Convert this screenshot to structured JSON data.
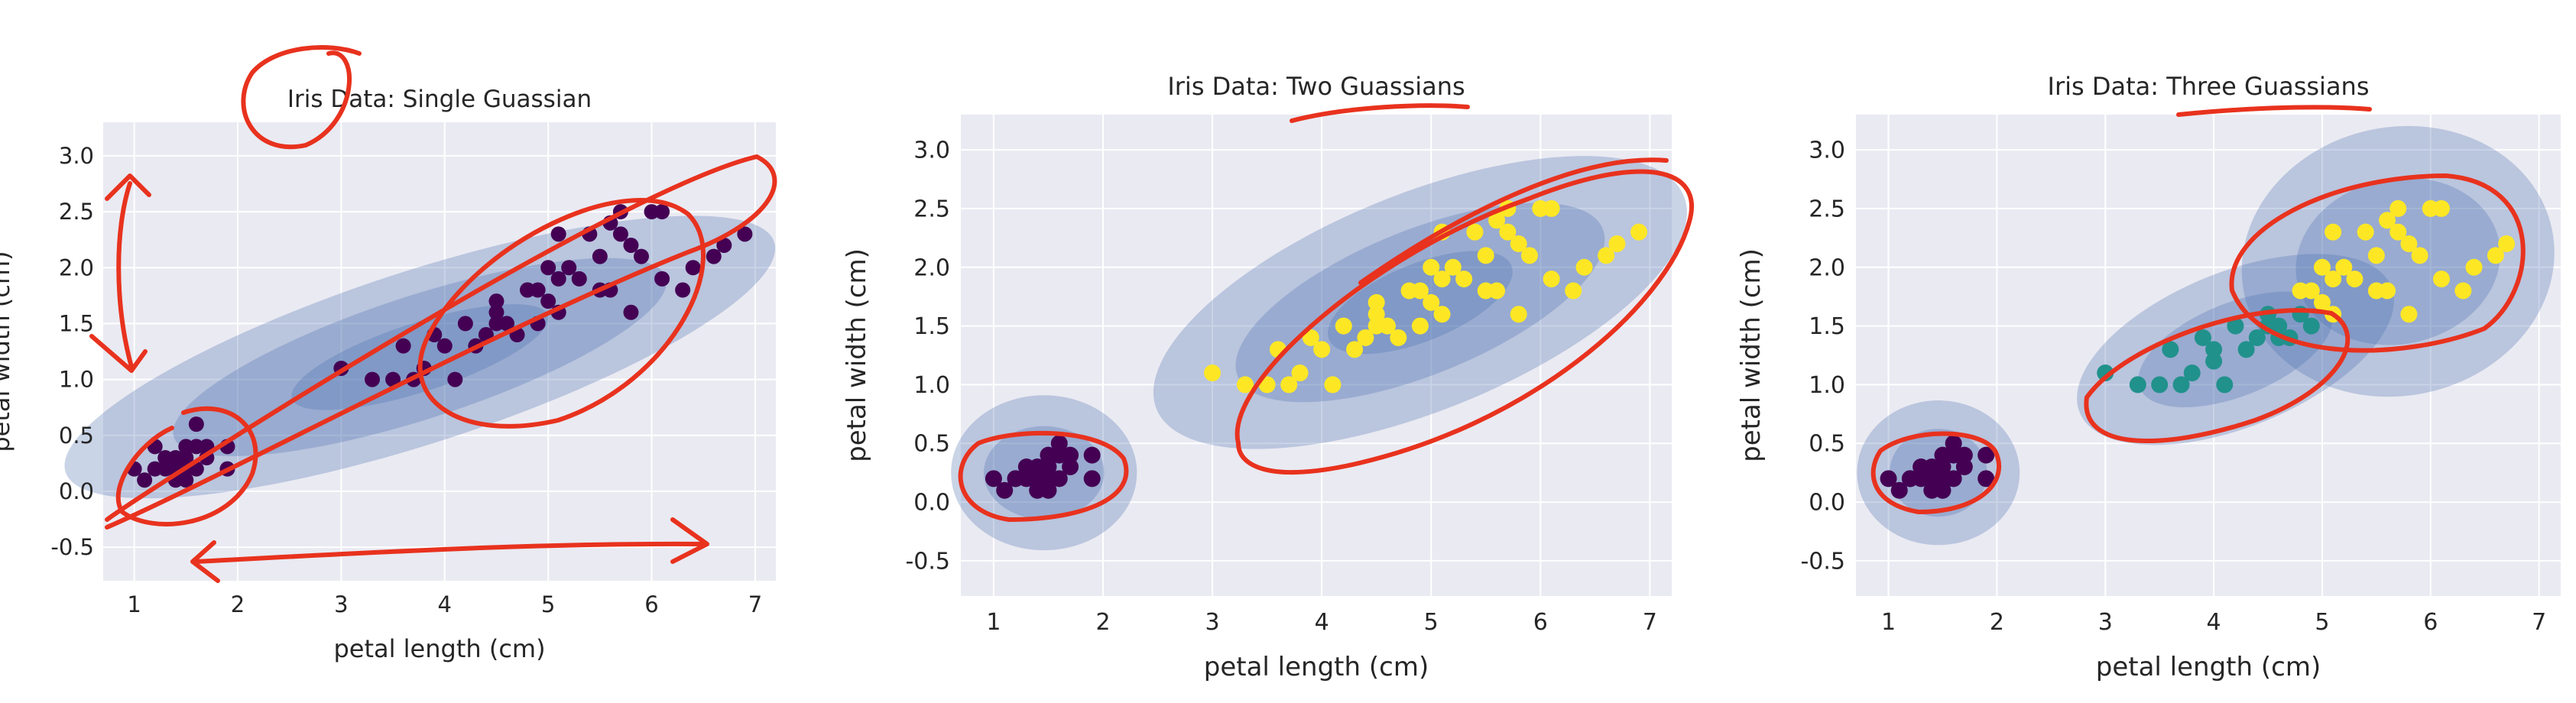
{
  "chart_data": [
    {
      "type": "scatter",
      "title": "Iris Data: Single Guassian",
      "xlabel": "petal length (cm)",
      "ylabel": "petal width (cm)",
      "xlim": [
        0.7,
        7.2
      ],
      "ylim": [
        -0.8,
        3.3
      ],
      "xticks": [
        1,
        2,
        3,
        4,
        5,
        6,
        7
      ],
      "yticks": [
        -0.5,
        0.0,
        0.5,
        1.0,
        1.5,
        2.0,
        2.5,
        3.0
      ],
      "grid": true,
      "series": [
        {
          "color": "#440154",
          "points": [
            [
              1.4,
              0.2
            ],
            [
              1.3,
              0.2
            ],
            [
              1.5,
              0.2
            ],
            [
              1.4,
              0.3
            ],
            [
              1.7,
              0.4
            ],
            [
              1.5,
              0.1
            ],
            [
              1.6,
              0.2
            ],
            [
              1.1,
              0.1
            ],
            [
              1.2,
              0.2
            ],
            [
              1.0,
              0.2
            ],
            [
              1.9,
              0.4
            ],
            [
              1.6,
              0.6
            ],
            [
              1.5,
              0.4
            ],
            [
              1.3,
              0.3
            ],
            [
              1.7,
              0.3
            ],
            [
              1.4,
              0.1
            ],
            [
              1.6,
              0.4
            ],
            [
              1.5,
              0.3
            ],
            [
              1.2,
              0.4
            ],
            [
              1.9,
              0.2
            ],
            [
              4.7,
              1.4
            ],
            [
              4.5,
              1.5
            ],
            [
              4.9,
              1.5
            ],
            [
              4.0,
              1.3
            ],
            [
              4.6,
              1.5
            ],
            [
              3.3,
              1.0
            ],
            [
              3.9,
              1.4
            ],
            [
              3.5,
              1.0
            ],
            [
              4.2,
              1.5
            ],
            [
              3.6,
              1.3
            ],
            [
              4.4,
              1.4
            ],
            [
              4.1,
              1.0
            ],
            [
              4.8,
              1.8
            ],
            [
              4.3,
              1.3
            ],
            [
              5.0,
              1.7
            ],
            [
              3.8,
              1.1
            ],
            [
              3.7,
              1.0
            ],
            [
              5.1,
              1.6
            ],
            [
              4.5,
              1.6
            ],
            [
              3.0,
              1.1
            ],
            [
              6.0,
              2.5
            ],
            [
              5.1,
              1.9
            ],
            [
              5.9,
              2.1
            ],
            [
              5.6,
              1.8
            ],
            [
              5.8,
              2.2
            ],
            [
              6.6,
              2.1
            ],
            [
              4.5,
              1.7
            ],
            [
              6.3,
              1.8
            ],
            [
              6.1,
              2.5
            ],
            [
              5.3,
              1.9
            ],
            [
              5.5,
              2.1
            ],
            [
              5.0,
              2.0
            ],
            [
              6.7,
              2.2
            ],
            [
              6.9,
              2.3
            ],
            [
              5.7,
              2.3
            ],
            [
              4.9,
              1.8
            ],
            [
              6.4,
              2.0
            ],
            [
              5.4,
              2.3
            ],
            [
              5.6,
              2.4
            ],
            [
              5.1,
              2.3
            ],
            [
              5.2,
              2.0
            ],
            [
              5.7,
              2.5
            ],
            [
              4.8,
              1.8
            ],
            [
              5.8,
              1.6
            ],
            [
              6.1,
              1.9
            ],
            [
              5.5,
              1.8
            ]
          ]
        }
      ],
      "ellipses": [
        {
          "cx": 3.76,
          "cy": 1.2,
          "rx": 3.6,
          "ry": 0.35,
          "angle": 18,
          "opacity": 0.3
        },
        {
          "cx": 3.76,
          "cy": 1.2,
          "rx": 2.5,
          "ry": 0.25,
          "angle": 18,
          "opacity": 0.3
        },
        {
          "cx": 3.76,
          "cy": 1.2,
          "rx": 1.3,
          "ry": 0.14,
          "angle": 18,
          "opacity": 0.3
        }
      ]
    },
    {
      "type": "scatter",
      "title": "Iris Data: Two Guassians",
      "xlabel": "petal length (cm)",
      "ylabel": "petal width (cm)",
      "xlim": [
        0.7,
        7.2
      ],
      "ylim": [
        -0.8,
        3.3
      ],
      "xticks": [
        1,
        2,
        3,
        4,
        5,
        6,
        7
      ],
      "yticks": [
        -0.5,
        0.0,
        0.5,
        1.0,
        1.5,
        2.0,
        2.5,
        3.0
      ],
      "grid": true,
      "series": [
        {
          "color": "#440154",
          "points": [
            [
              1.4,
              0.2
            ],
            [
              1.3,
              0.2
            ],
            [
              1.5,
              0.2
            ],
            [
              1.4,
              0.3
            ],
            [
              1.7,
              0.4
            ],
            [
              1.5,
              0.1
            ],
            [
              1.6,
              0.2
            ],
            [
              1.1,
              0.1
            ],
            [
              1.2,
              0.2
            ],
            [
              1.0,
              0.2
            ],
            [
              1.9,
              0.4
            ],
            [
              1.6,
              0.5
            ],
            [
              1.5,
              0.4
            ],
            [
              1.3,
              0.3
            ],
            [
              1.7,
              0.3
            ],
            [
              1.4,
              0.1
            ],
            [
              1.6,
              0.4
            ],
            [
              1.5,
              0.3
            ],
            [
              1.2,
              0.2
            ],
            [
              1.9,
              0.2
            ]
          ]
        },
        {
          "color": "#fde725",
          "points": [
            [
              4.7,
              1.4
            ],
            [
              4.5,
              1.5
            ],
            [
              4.9,
              1.5
            ],
            [
              4.0,
              1.3
            ],
            [
              4.6,
              1.5
            ],
            [
              3.3,
              1.0
            ],
            [
              3.9,
              1.4
            ],
            [
              3.5,
              1.0
            ],
            [
              4.2,
              1.5
            ],
            [
              3.6,
              1.3
            ],
            [
              4.4,
              1.4
            ],
            [
              4.1,
              1.0
            ],
            [
              4.8,
              1.8
            ],
            [
              4.3,
              1.3
            ],
            [
              5.0,
              1.7
            ],
            [
              3.8,
              1.1
            ],
            [
              3.7,
              1.0
            ],
            [
              5.1,
              1.6
            ],
            [
              4.5,
              1.6
            ],
            [
              3.0,
              1.1
            ],
            [
              6.0,
              2.5
            ],
            [
              5.1,
              1.9
            ],
            [
              5.9,
              2.1
            ],
            [
              5.6,
              1.8
            ],
            [
              5.8,
              2.2
            ],
            [
              6.6,
              2.1
            ],
            [
              4.5,
              1.7
            ],
            [
              6.3,
              1.8
            ],
            [
              6.1,
              2.5
            ],
            [
              5.3,
              1.9
            ],
            [
              5.5,
              2.1
            ],
            [
              5.0,
              2.0
            ],
            [
              6.7,
              2.2
            ],
            [
              6.9,
              2.3
            ],
            [
              5.7,
              2.3
            ],
            [
              4.9,
              1.8
            ],
            [
              6.4,
              2.0
            ],
            [
              5.4,
              2.3
            ],
            [
              5.6,
              2.4
            ],
            [
              5.1,
              2.3
            ],
            [
              5.2,
              2.0
            ],
            [
              5.7,
              2.5
            ],
            [
              5.8,
              1.6
            ],
            [
              6.1,
              1.9
            ],
            [
              5.5,
              1.8
            ]
          ]
        }
      ],
      "ellipses": [
        {
          "cx": 1.46,
          "cy": 0.25,
          "rx": 0.85,
          "ry": 0.3,
          "angle": 0,
          "opacity": 0.3
        },
        {
          "cx": 1.46,
          "cy": 0.25,
          "rx": 0.55,
          "ry": 0.18,
          "angle": 0,
          "opacity": 0.3
        },
        {
          "cx": 4.9,
          "cy": 1.7,
          "rx": 2.6,
          "ry": 0.42,
          "angle": 22,
          "opacity": 0.3
        },
        {
          "cx": 4.9,
          "cy": 1.7,
          "rx": 1.8,
          "ry": 0.28,
          "angle": 22,
          "opacity": 0.3
        },
        {
          "cx": 4.9,
          "cy": 1.7,
          "rx": 0.9,
          "ry": 0.15,
          "angle": 22,
          "opacity": 0.3
        }
      ]
    },
    {
      "type": "scatter",
      "title": "Iris Data: Three Guassians",
      "xlabel": "petal length (cm)",
      "ylabel": "petal width (cm)",
      "xlim": [
        0.7,
        7.2
      ],
      "ylim": [
        -0.8,
        3.3
      ],
      "xticks": [
        1,
        2,
        3,
        4,
        5,
        6,
        7
      ],
      "yticks": [
        -0.5,
        0.0,
        0.5,
        1.0,
        1.5,
        2.0,
        2.5,
        3.0
      ],
      "grid": true,
      "series": [
        {
          "color": "#440154",
          "points": [
            [
              1.4,
              0.2
            ],
            [
              1.3,
              0.2
            ],
            [
              1.5,
              0.2
            ],
            [
              1.4,
              0.3
            ],
            [
              1.7,
              0.4
            ],
            [
              1.5,
              0.1
            ],
            [
              1.6,
              0.2
            ],
            [
              1.1,
              0.1
            ],
            [
              1.2,
              0.2
            ],
            [
              1.0,
              0.2
            ],
            [
              1.9,
              0.4
            ],
            [
              1.6,
              0.5
            ],
            [
              1.5,
              0.4
            ],
            [
              1.3,
              0.3
            ],
            [
              1.7,
              0.3
            ],
            [
              1.4,
              0.1
            ],
            [
              1.6,
              0.4
            ],
            [
              1.5,
              0.3
            ],
            [
              1.2,
              0.2
            ],
            [
              1.9,
              0.2
            ]
          ]
        },
        {
          "color": "#21918c",
          "points": [
            [
              4.7,
              1.4
            ],
            [
              4.5,
              1.5
            ],
            [
              4.9,
              1.5
            ],
            [
              4.0,
              1.3
            ],
            [
              4.6,
              1.5
            ],
            [
              3.3,
              1.0
            ],
            [
              3.9,
              1.4
            ],
            [
              3.5,
              1.0
            ],
            [
              4.2,
              1.5
            ],
            [
              3.6,
              1.3
            ],
            [
              4.4,
              1.4
            ],
            [
              4.1,
              1.0
            ],
            [
              4.3,
              1.3
            ],
            [
              3.8,
              1.1
            ],
            [
              3.7,
              1.0
            ],
            [
              4.5,
              1.6
            ],
            [
              3.0,
              1.1
            ],
            [
              4.8,
              1.6
            ],
            [
              4.0,
              1.2
            ],
            [
              4.6,
              1.4
            ]
          ]
        },
        {
          "color": "#fde725",
          "points": [
            [
              6.0,
              2.5
            ],
            [
              5.1,
              1.9
            ],
            [
              5.9,
              2.1
            ],
            [
              5.6,
              1.8
            ],
            [
              5.8,
              2.2
            ],
            [
              6.6,
              2.1
            ],
            [
              6.3,
              1.8
            ],
            [
              6.1,
              2.5
            ],
            [
              5.3,
              1.9
            ],
            [
              5.5,
              2.1
            ],
            [
              5.0,
              2.0
            ],
            [
              6.7,
              2.2
            ],
            [
              5.7,
              2.3
            ],
            [
              4.9,
              1.8
            ],
            [
              6.4,
              2.0
            ],
            [
              5.4,
              2.3
            ],
            [
              5.6,
              2.4
            ],
            [
              5.1,
              2.3
            ],
            [
              5.2,
              2.0
            ],
            [
              5.7,
              2.5
            ],
            [
              5.8,
              1.6
            ],
            [
              6.1,
              1.9
            ],
            [
              5.5,
              1.8
            ],
            [
              5.1,
              1.6
            ],
            [
              5.0,
              1.7
            ],
            [
              4.8,
              1.8
            ]
          ]
        }
      ],
      "ellipses": [
        {
          "cx": 1.46,
          "cy": 0.25,
          "rx": 0.75,
          "ry": 0.28,
          "angle": 0,
          "opacity": 0.3
        },
        {
          "cx": 1.46,
          "cy": 0.25,
          "rx": 0.45,
          "ry": 0.17,
          "angle": 0,
          "opacity": 0.3
        },
        {
          "cx": 4.2,
          "cy": 1.3,
          "rx": 1.55,
          "ry": 0.3,
          "angle": 22,
          "opacity": 0.3
        },
        {
          "cx": 4.2,
          "cy": 1.3,
          "rx": 0.95,
          "ry": 0.18,
          "angle": 22,
          "opacity": 0.3
        },
        {
          "cx": 5.7,
          "cy": 2.05,
          "rx": 1.45,
          "ry": 0.52,
          "angle": 12,
          "opacity": 0.3
        },
        {
          "cx": 5.7,
          "cy": 2.05,
          "rx": 0.95,
          "ry": 0.32,
          "angle": 12,
          "opacity": 0.3
        }
      ]
    }
  ],
  "colors": {
    "axes_bg": "#eaeaf2",
    "grid": "#ffffff",
    "ellipse_fill": "#4c72b0",
    "tick_text": "#262626",
    "annotation": "#e8321e"
  }
}
